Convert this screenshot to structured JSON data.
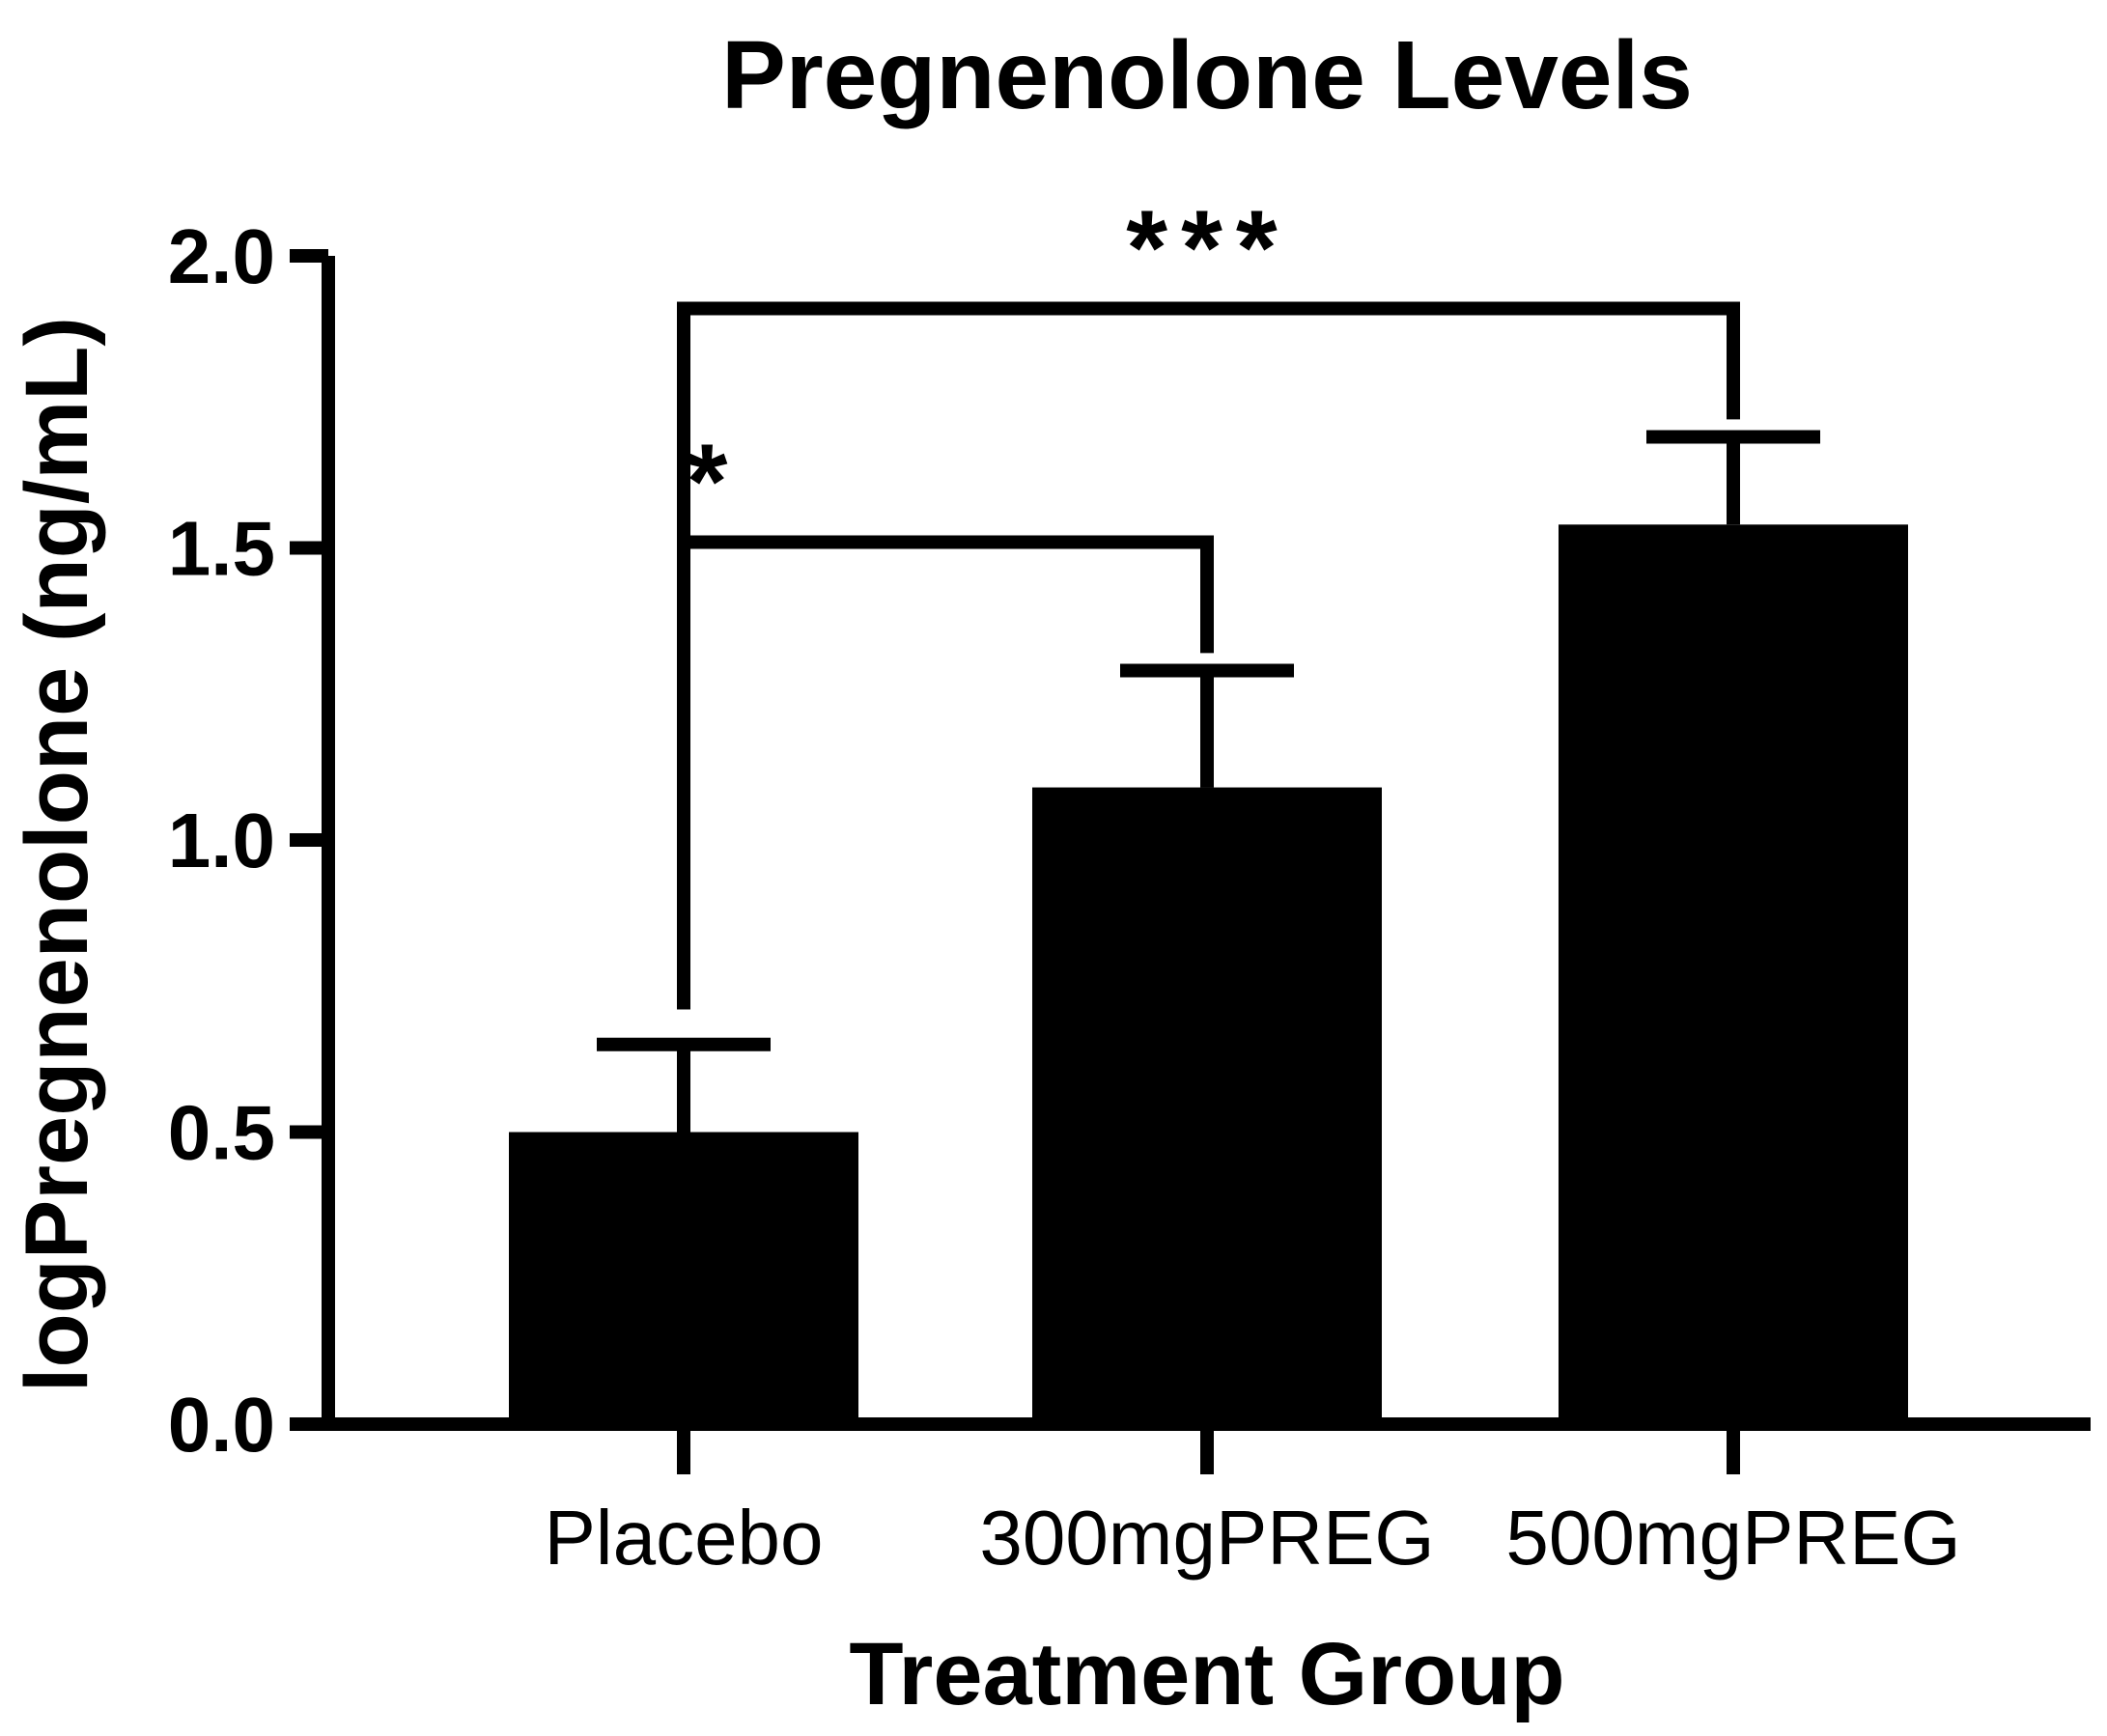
{
  "chart_data": {
    "type": "bar",
    "title": "Pregnenolone Levels",
    "xlabel": "Treatment Group",
    "ylabel": "logPregnenolone (ng/mL)",
    "categories": [
      "Placebo",
      "300mgPREG",
      "500mgPREG"
    ],
    "values": [
      0.5,
      1.09,
      1.54
    ],
    "error_upper": [
      0.15,
      0.2,
      0.15
    ],
    "ylim": [
      0,
      2.0
    ],
    "yticks": [
      0.0,
      0.5,
      1.0,
      1.5,
      2.0
    ],
    "ytick_labels": [
      "0.0",
      "0.5",
      "1.0",
      "1.5",
      "2.0"
    ],
    "bar_color": "#000000",
    "grid": false,
    "significance": [
      {
        "from": "Placebo",
        "to": "300mgPREG",
        "label": "*",
        "bracket_y": 1.51,
        "left_drop_to": 1.12,
        "right_drop_to": 1.32
      },
      {
        "from": "Placebo",
        "to": "500mgPREG",
        "label": "***",
        "bracket_y": 1.91,
        "left_drop_to": 0.71,
        "right_drop_to": 1.72
      }
    ]
  }
}
